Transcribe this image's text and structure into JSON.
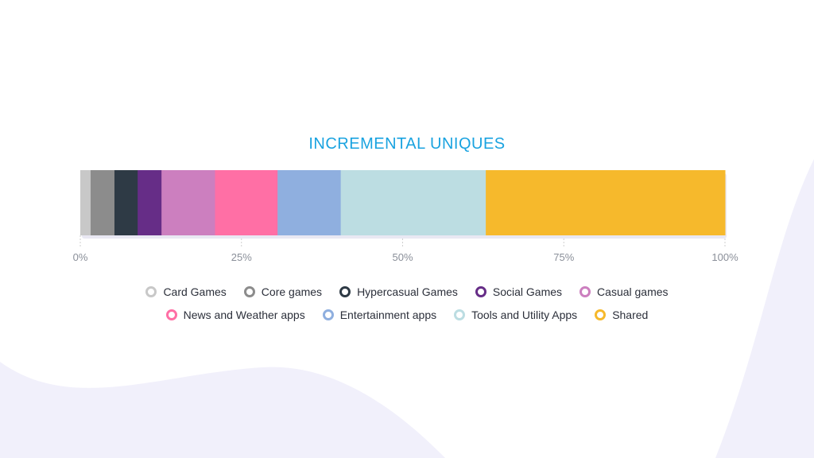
{
  "chart_data": {
    "type": "bar",
    "orientation": "horizontal-stacked-100",
    "title": "INCREMENTAL UNIQUES",
    "xlim": [
      0,
      100
    ],
    "x_ticks": [
      "0%",
      "25%",
      "50%",
      "75%",
      "100%"
    ],
    "grid": "dashed vertical at ticks",
    "legend_position": "bottom-center",
    "series": [
      {
        "name": "Card Games",
        "value": 1.6,
        "color": "#c8c8c8"
      },
      {
        "name": "Core games",
        "value": 3.7,
        "color": "#8c8c8c"
      },
      {
        "name": "Hypercasual Games",
        "value": 3.6,
        "color": "#2e3a45"
      },
      {
        "name": "Social Games",
        "value": 3.7,
        "color": "#662d87"
      },
      {
        "name": "Casual games",
        "value": 8.3,
        "color": "#cc7fbf"
      },
      {
        "name": "News and Weather apps",
        "value": 9.7,
        "color": "#ff6fa5"
      },
      {
        "name": "Entertainment apps",
        "value": 9.8,
        "color": "#8fafdf"
      },
      {
        "name": "Tools and Utility Apps",
        "value": 22.5,
        "color": "#bcdde2"
      },
      {
        "name": "Shared",
        "value": 37.1,
        "color": "#f6b92c"
      }
    ]
  }
}
